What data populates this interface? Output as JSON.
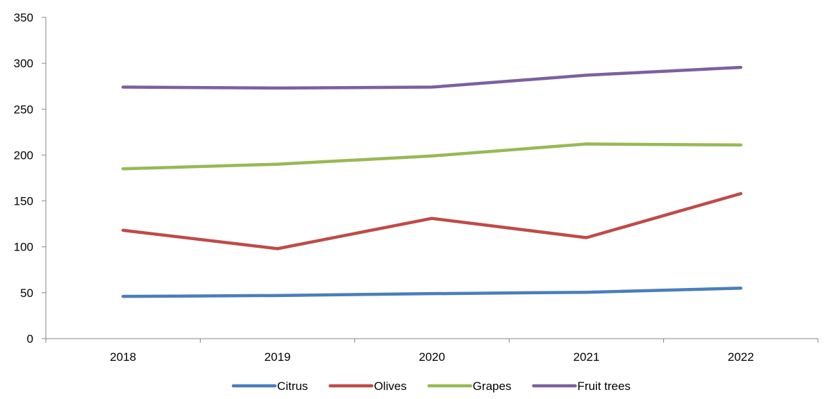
{
  "chart_data": {
    "type": "line",
    "title": "",
    "xlabel": "",
    "ylabel": "",
    "categories": [
      "2018",
      "2019",
      "2020",
      "2021",
      "2022"
    ],
    "ylim": [
      0,
      350
    ],
    "yticks": [
      0,
      50,
      100,
      150,
      200,
      250,
      300,
      350
    ],
    "yticklabels": [
      "0",
      "50",
      "100",
      "150",
      "200",
      "250",
      "300",
      "350"
    ],
    "grid": false,
    "legend": "bottom",
    "series": [
      {
        "name": "Citrus",
        "color": "#4a7ebb",
        "values": [
          46,
          47,
          49,
          50.5,
          55
        ]
      },
      {
        "name": "Olives",
        "color": "#be4b48",
        "values": [
          118,
          98,
          131,
          110,
          158
        ]
      },
      {
        "name": "Grapes",
        "color": "#98b954",
        "values": [
          185,
          190,
          199,
          212,
          211
        ]
      },
      {
        "name": "Fruit trees",
        "color": "#7d60a0",
        "values": [
          274,
          273,
          274,
          287,
          295.5
        ]
      }
    ]
  }
}
